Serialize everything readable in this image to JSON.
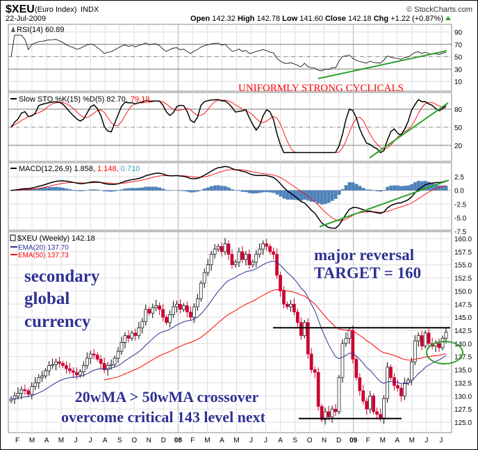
{
  "header": {
    "symbol": "$XEU",
    "name": "(Euro Index)",
    "exchange": "INDX",
    "copyright": "© StockCharts.com",
    "date": "22-Jul-2009",
    "open_label": "Open",
    "open": "142.32",
    "high_label": "High",
    "high": "142.78",
    "low_label": "Low",
    "low": "141.60",
    "close_label": "Close",
    "close": "142.18",
    "chg_label": "Chg",
    "chg": "+1.22 (+0.87%)"
  },
  "colors": {
    "up": "#ffffff",
    "down": "#cc0033",
    "ema20": "#2e3192",
    "ema50": "#ff0000",
    "trend": "#2ca02c",
    "annotation": "#2e3192",
    "histogram": "#4f81bd"
  },
  "chart_data": [
    {
      "type": "line",
      "title": "RSI(14) 60.89",
      "ylim": [
        0,
        100
      ],
      "ticks": [
        "90",
        "70",
        "50",
        "30",
        "10"
      ],
      "tick_values": [
        90,
        70,
        50,
        30,
        10
      ],
      "annotation": "UNIFORMLY STRONG CYCLICALS"
    },
    {
      "type": "line",
      "title": "Slow STO %K(15) %D(5) 82.70,",
      "title_d": "79.19",
      "ylim": [
        0,
        100
      ],
      "ticks": [
        "80",
        "50",
        "20"
      ],
      "tick_values": [
        80,
        50,
        20
      ]
    },
    {
      "type": "bar",
      "title": "MACD(12,26,9) 1.858,",
      "title_signal": "1.148,",
      "title_hist": "0.710",
      "ticks": [
        "2.5",
        "0.0",
        "-2.5",
        "-5.0",
        "-7.5"
      ],
      "tick_values": [
        2.5,
        0,
        -2.5,
        -5,
        -7.5
      ]
    },
    {
      "type": "candlestick",
      "title": "$XEU (Weekly) 142.18",
      "ema20_label": "EMA(20) 137.70",
      "ema50_label": "EMA(50) 137.73",
      "ylim": [
        124,
        161
      ],
      "ticks": [
        "160.0",
        "157.5",
        "155.0",
        "152.5",
        "150.0",
        "147.5",
        "145.0",
        "142.5",
        "140.0",
        "137.5",
        "135.0",
        "132.5",
        "130.0",
        "127.5",
        "125.0"
      ],
      "tick_values": [
        160,
        157.5,
        155,
        152.5,
        150,
        147.5,
        145,
        142.5,
        140,
        137.5,
        135,
        132.5,
        130,
        127.5,
        125
      ],
      "x_labels": [
        "F",
        "M",
        "A",
        "M",
        "J",
        "J",
        "A",
        "S",
        "O",
        "N",
        "D",
        "08",
        "F",
        "M",
        "A",
        "M",
        "J",
        "J",
        "A",
        "S",
        "O",
        "N",
        "D",
        "09",
        "F",
        "M",
        "A",
        "M",
        "J",
        "J"
      ],
      "weekly_close": [
        129.4,
        130.0,
        130.5,
        131.2,
        131.0,
        130.3,
        131.8,
        132.5,
        133.5,
        133.8,
        134.8,
        135.8,
        136.0,
        136.5,
        136.2,
        135.8,
        135.2,
        134.8,
        134.5,
        134.0,
        134.6,
        135.8,
        137.2,
        138.0,
        137.8,
        137.0,
        136.2,
        135.0,
        135.8,
        136.0,
        137.2,
        138.5,
        140.2,
        141.5,
        141.0,
        142.0,
        141.5,
        143.0,
        144.2,
        146.5,
        145.8,
        146.8,
        147.2,
        146.5,
        145.0,
        144.0,
        145.5,
        147.0,
        147.5,
        146.5,
        147.2,
        146.0,
        145.0,
        147.0,
        148.5,
        151.5,
        153.5,
        155.0,
        157.0,
        158.0,
        158.5,
        157.5,
        159.0,
        157.0,
        155.0,
        155.5,
        157.5,
        156.0,
        157.0,
        155.0,
        155.5,
        157.0,
        158.0,
        159.0,
        158.5,
        157.5,
        157.0,
        153.0,
        150.0,
        147.5,
        147.0,
        147.5,
        146.0,
        144.0,
        141.5,
        144.0,
        138.0,
        135.0,
        134.5,
        128.0,
        125.5,
        127.0,
        126.0,
        127.5,
        127.0,
        133.5,
        140.0,
        141.0,
        142.5,
        137.0,
        133.5,
        131.0,
        129.0,
        127.5,
        130.0,
        127.0,
        126.5,
        125.8,
        129.5,
        135.5,
        133.5,
        132.0,
        131.5,
        130.0,
        132.5,
        133.0,
        136.5,
        140.5,
        141.5,
        139.5,
        142.0,
        140.0,
        139.5,
        140.0,
        139.2,
        141.0,
        142.18
      ],
      "annotations": [
        "secondary",
        "global",
        "currency",
        "major reversal",
        "TARGET = 160",
        "20wMA > 50wMA crossover",
        "overcome critical 143 level next"
      ],
      "resistance": 143,
      "support": 125.7
    }
  ]
}
